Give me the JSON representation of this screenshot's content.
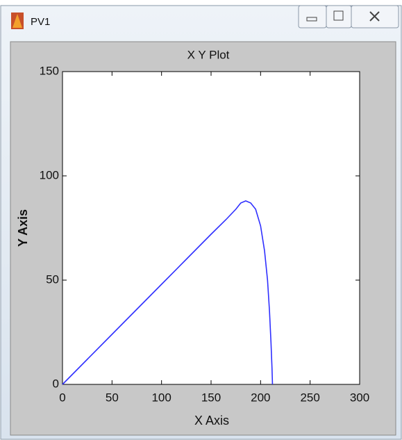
{
  "window": {
    "title": "PV1"
  },
  "chart_data": {
    "type": "line",
    "title": "X Y Plot",
    "x_label": "X Axis",
    "y_label": "Y Axis",
    "x": [
      0,
      25,
      50,
      75,
      100,
      125,
      150,
      165,
      175,
      180,
      185,
      190,
      195,
      200,
      204,
      207,
      209,
      210.5,
      211.5,
      212
    ],
    "values": [
      0,
      12,
      24,
      36,
      48,
      60,
      72,
      79,
      84,
      87,
      88,
      87,
      84,
      76,
      64,
      50,
      35,
      20,
      8,
      0
    ],
    "color": "#2f2fff",
    "xlim": [
      0,
      300
    ],
    "xticks": [
      0,
      50,
      100,
      150,
      200,
      250,
      300
    ],
    "ylim": [
      0,
      150
    ],
    "yticks": [
      0,
      50,
      100,
      150
    ]
  }
}
